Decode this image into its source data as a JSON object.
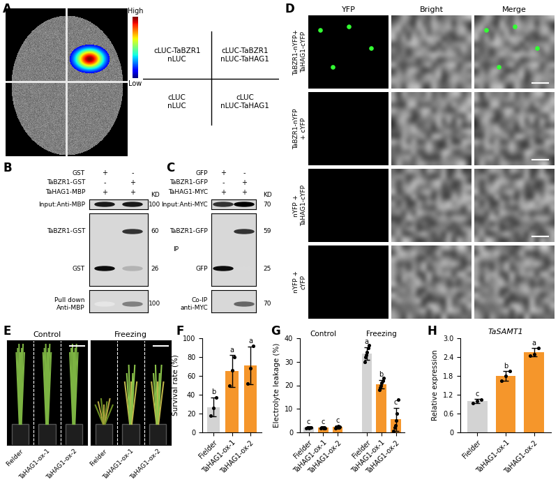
{
  "panel_labels": [
    "A",
    "B",
    "C",
    "D",
    "E",
    "F",
    "G",
    "H"
  ],
  "luciferase": {
    "colorbar": {
      "high": "High",
      "low": "Low"
    },
    "quadrants": [
      [
        "cLUC-TaBZR1",
        "nLUC"
      ],
      [
        "cLUC-TaBZR1",
        "nLUC-TaHAG1"
      ],
      [
        "cLUC",
        "nLUC"
      ],
      [
        "cLUC",
        "nLUC-TaHAG1"
      ]
    ]
  },
  "pull_down": {
    "conditions": [
      {
        "name": "GST",
        "marks": [
          "+",
          "-"
        ]
      },
      {
        "name": "TaBZR1-GST",
        "marks": [
          "-",
          "+"
        ]
      },
      {
        "name": "TaHAG1-MBP",
        "marks": [
          "+",
          "+"
        ]
      }
    ],
    "unit": "KD",
    "blots": [
      {
        "title": [
          "Input:Anti-MBP"
        ],
        "bands": [
          {
            "name": null,
            "kd": 100
          }
        ]
      },
      {
        "title": null,
        "bands": [
          {
            "name": "TaBZR1-GST",
            "kd": 60
          },
          {
            "name": "GST",
            "kd": 26
          }
        ]
      },
      {
        "title": [
          "Pull down",
          "Anti-MBP"
        ],
        "bands": [
          {
            "name": null,
            "kd": 100
          }
        ]
      }
    ]
  },
  "co_ip": {
    "conditions": [
      {
        "name": "GFP",
        "marks": [
          "+",
          "-"
        ]
      },
      {
        "name": "TaBZR1-GFP",
        "marks": [
          "-",
          "+"
        ]
      },
      {
        "name": "TaHAG1-MYC",
        "marks": [
          "+",
          "+"
        ]
      }
    ],
    "unit": "KD",
    "blots": [
      {
        "title": [
          "Input:Anti-MYC"
        ],
        "bands": [
          {
            "name": null,
            "kd": 70
          }
        ]
      },
      {
        "title": [
          "IP"
        ],
        "bands": [
          {
            "name": "TaBZR1-GFP",
            "kd": 59
          },
          {
            "name": "GFP",
            "kd": 25
          }
        ]
      },
      {
        "title": [
          "Co-IP",
          "anti-MYC"
        ],
        "bands": [
          {
            "name": null,
            "kd": 70
          }
        ]
      }
    ]
  },
  "bifc": {
    "columns": [
      "YFP",
      "Bright",
      "Merge"
    ],
    "rows": [
      [
        "TaBZR1-nYFP+",
        "TaHAG1-cYFP"
      ],
      [
        "TaBZR1-nYFP",
        "+ cYFP"
      ],
      [
        "nYFP +",
        "TaHAG1-cYFP"
      ],
      [
        "nYFP +",
        "cYFP"
      ]
    ]
  },
  "phenotype": {
    "conditions": [
      "Control",
      "Freezing"
    ],
    "categories": [
      "Fielder",
      "TaHAG1-ox-1",
      "TaHAG1-ox-2"
    ]
  },
  "chart_data": [
    {
      "type": "bar",
      "ylabel": "Survival rate (%)",
      "categories": [
        "Fielder",
        "TaHAG1-ox-1",
        "TaHAG1-ox-2"
      ],
      "values": [
        27,
        65,
        71
      ],
      "errors": [
        10,
        17,
        20
      ],
      "points": [
        [
          18,
          26,
          37
        ],
        [
          50,
          66,
          80
        ],
        [
          52,
          68,
          92
        ]
      ],
      "letters": [
        "b",
        "a",
        "a"
      ],
      "colors": [
        "#d3d3d3",
        "#f5962b",
        "#f5962b"
      ],
      "ylim": [
        0,
        100
      ],
      "yticks": [
        0,
        20,
        40,
        60,
        80,
        100
      ]
    },
    {
      "type": "bar",
      "ylabel": "Electrolyte leakage (%)",
      "categories": [
        "Fielder",
        "TaHAG1-ox-1",
        "TaHAG1-ox-2"
      ],
      "groups": [
        {
          "name": "Control",
          "values": [
            2.0,
            2.0,
            2.3
          ],
          "errors": [
            0.2,
            0.2,
            0.4
          ],
          "points": [
            [
              1.8,
              2.0,
              2.1,
              1.9,
              2.2,
              2.0
            ],
            [
              1.7,
              2.0,
              2.2,
              1.9,
              2.1,
              1.8
            ],
            [
              1.9,
              2.5,
              2.2,
              2.8,
              2.0,
              2.4
            ]
          ],
          "letters": [
            "c",
            "c",
            "c"
          ],
          "colors": [
            "#d3d3d3",
            "#f5962b",
            "#f5962b"
          ]
        },
        {
          "name": "Freezing",
          "values": [
            33.5,
            20.5,
            5.5
          ],
          "errors": [
            2.6,
            1.8,
            5.0
          ],
          "points": [
            [
              30,
              32,
              33,
              34,
              36,
              37
            ],
            [
              18,
              19,
              20,
              21,
              22,
              23
            ],
            [
              0.5,
              2,
              3,
              5,
              8,
              14
            ]
          ],
          "letters": [
            "a",
            "b",
            "c"
          ],
          "colors": [
            "#d3d3d3",
            "#f5962b",
            "#f5962b"
          ]
        }
      ],
      "ylim": [
        0,
        40
      ],
      "yticks": [
        0,
        10,
        20,
        30,
        40
      ]
    },
    {
      "type": "bar",
      "title": "TaSAMT1",
      "ylabel": "Relative expression",
      "categories": [
        "Fielder",
        "TaHAG1-ox-1",
        "TaHAG1-ox-2"
      ],
      "values": [
        1.0,
        1.8,
        2.55
      ],
      "errors": [
        0.06,
        0.15,
        0.13
      ],
      "points": [
        [
          0.93,
          1.0,
          1.05
        ],
        [
          1.65,
          1.8,
          1.95
        ],
        [
          2.45,
          2.5,
          2.7
        ]
      ],
      "letters": [
        "c",
        "b",
        "a"
      ],
      "colors": [
        "#d3d3d3",
        "#f5962b",
        "#f5962b"
      ],
      "ylim": [
        0,
        3.0
      ],
      "yticks": [
        0,
        0.6,
        1.2,
        1.8,
        2.4,
        3.0
      ]
    }
  ]
}
